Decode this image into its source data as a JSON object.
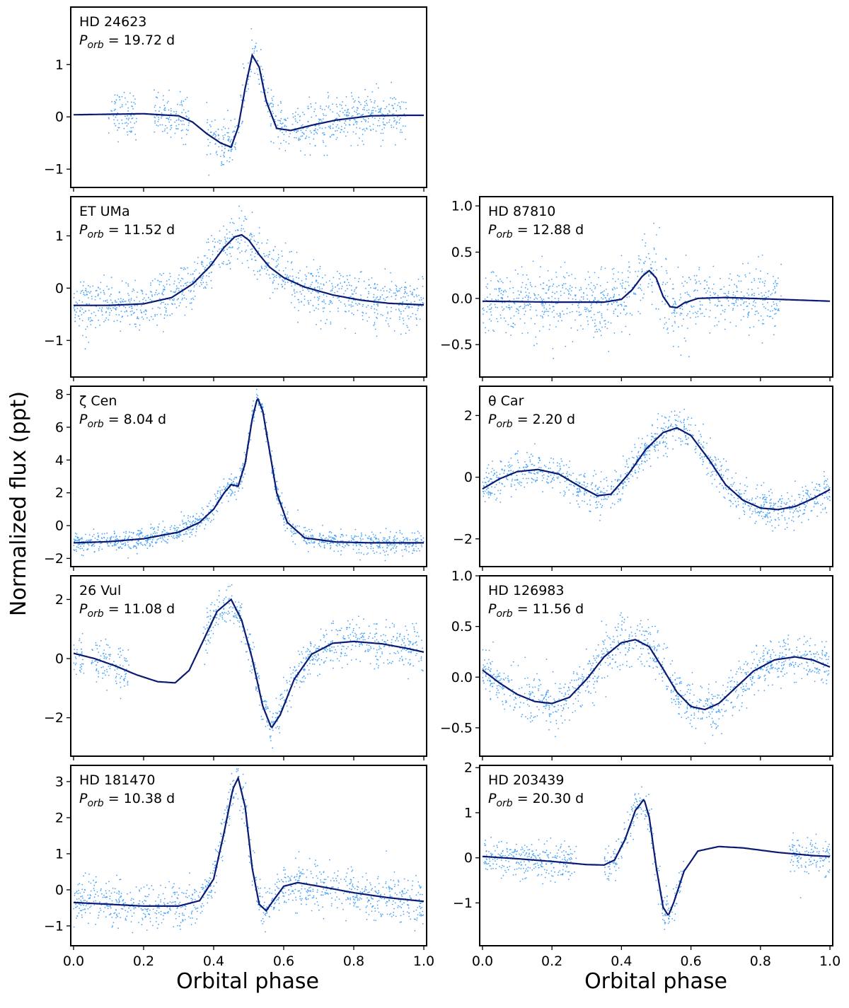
{
  "figure": {
    "ylabel": "Normalized flux (ppt)",
    "xlabel": "Orbital phase",
    "colors": {
      "data": "#4aa3f5",
      "model": "#0a1a72",
      "frame": "#000000"
    }
  },
  "chart_data": [
    {
      "type": "scatter",
      "star": "HD 24623",
      "period": "P_orb = 19.72 d",
      "period_value": 19.72,
      "xlim": [
        0,
        1
      ],
      "ylim": [
        -1.35,
        2.1
      ],
      "xticks": [
        0.0,
        0.2,
        0.4,
        0.6,
        0.8,
        1.0
      ],
      "yticks": [
        -1,
        0,
        1
      ],
      "ytick_labels": [
        "−1",
        "0",
        "1"
      ],
      "xtick_labels": [],
      "model_curve": {
        "x": [
          0.0,
          0.1,
          0.2,
          0.3,
          0.34,
          0.38,
          0.42,
          0.45,
          0.47,
          0.49,
          0.51,
          0.53,
          0.55,
          0.58,
          0.62,
          0.68,
          0.75,
          0.85,
          0.95,
          1.0
        ],
        "y": [
          0.04,
          0.05,
          0.06,
          0.02,
          -0.1,
          -0.32,
          -0.5,
          -0.58,
          -0.2,
          0.55,
          1.18,
          0.95,
          0.3,
          -0.22,
          -0.26,
          -0.16,
          -0.06,
          0.02,
          0.03,
          0.03
        ]
      },
      "data_coverage": [
        [
          0.1,
          0.18
        ],
        [
          0.23,
          0.33
        ],
        [
          0.38,
          0.95
        ]
      ],
      "data_scatter": 0.22
    },
    {
      "type": "scatter",
      "star": "ET UMa",
      "period": "P_orb = 11.52 d",
      "period_value": 11.52,
      "xlim": [
        0,
        1
      ],
      "ylim": [
        -1.7,
        1.75
      ],
      "xticks": [
        0.0,
        0.2,
        0.4,
        0.6,
        0.8,
        1.0
      ],
      "yticks": [
        -1,
        0,
        1
      ],
      "ytick_labels": [
        "−1",
        "0",
        "1"
      ],
      "xtick_labels": [],
      "model_curve": {
        "x": [
          0.0,
          0.1,
          0.2,
          0.28,
          0.34,
          0.39,
          0.43,
          0.46,
          0.48,
          0.5,
          0.53,
          0.56,
          0.6,
          0.66,
          0.74,
          0.82,
          0.9,
          1.0
        ],
        "y": [
          -0.33,
          -0.33,
          -0.3,
          -0.18,
          0.08,
          0.42,
          0.78,
          0.98,
          1.02,
          0.92,
          0.64,
          0.4,
          0.2,
          0.02,
          -0.13,
          -0.23,
          -0.29,
          -0.32
        ]
      },
      "data_coverage": [
        [
          0.0,
          1.0
        ]
      ],
      "data_scatter": 0.25
    },
    {
      "type": "scatter",
      "star": "HD 87810",
      "period": "P_orb = 12.88 d",
      "period_value": 12.88,
      "xlim": [
        0,
        1
      ],
      "ylim": [
        -0.85,
        1.1
      ],
      "xticks": [
        0.0,
        0.2,
        0.4,
        0.6,
        0.8,
        1.0
      ],
      "yticks": [
        -0.5,
        0.0,
        0.5,
        1.0
      ],
      "ytick_labels": [
        "−0.5",
        "0.0",
        "0.5",
        "1.0"
      ],
      "xtick_labels": [],
      "model_curve": {
        "x": [
          0.0,
          0.2,
          0.35,
          0.4,
          0.43,
          0.46,
          0.48,
          0.5,
          0.52,
          0.54,
          0.56,
          0.58,
          0.62,
          0.7,
          0.85,
          1.0
        ],
        "y": [
          -0.03,
          -0.04,
          -0.04,
          -0.01,
          0.09,
          0.24,
          0.3,
          0.22,
          0.02,
          -0.09,
          -0.1,
          -0.05,
          0.0,
          0.01,
          -0.01,
          -0.03
        ]
      },
      "data_coverage": [
        [
          0.0,
          0.86
        ]
      ],
      "data_scatter": 0.18
    },
    {
      "type": "scatter",
      "star": "ζ Cen",
      "period": "P_orb = 8.04 d",
      "period_value": 8.04,
      "xlim": [
        0,
        1
      ],
      "ylim": [
        -2.5,
        8.5
      ],
      "xticks": [
        0.0,
        0.2,
        0.4,
        0.6,
        0.8,
        1.0
      ],
      "yticks": [
        -2,
        0,
        2,
        4,
        6,
        8
      ],
      "ytick_labels": [
        "−2",
        "0",
        "2",
        "4",
        "6",
        "8"
      ],
      "xtick_labels": [],
      "model_curve": {
        "x": [
          0.0,
          0.1,
          0.2,
          0.3,
          0.36,
          0.4,
          0.43,
          0.45,
          0.47,
          0.49,
          0.51,
          0.525,
          0.54,
          0.56,
          0.58,
          0.61,
          0.66,
          0.75,
          0.85,
          1.0
        ],
        "y": [
          -1.05,
          -0.98,
          -0.8,
          -0.4,
          0.2,
          1.0,
          2.0,
          2.5,
          2.4,
          3.8,
          6.5,
          7.8,
          7.0,
          4.5,
          2.0,
          0.2,
          -0.75,
          -1.0,
          -1.05,
          -1.05
        ]
      },
      "data_coverage": [
        [
          0.0,
          1.0
        ]
      ],
      "data_scatter": 0.35
    },
    {
      "type": "scatter",
      "star": "θ Car",
      "period": "P_orb = 2.20 d",
      "period_value": 2.2,
      "xlim": [
        0,
        1
      ],
      "ylim": [
        -2.9,
        2.95
      ],
      "xticks": [
        0.0,
        0.2,
        0.4,
        0.6,
        0.8,
        1.0
      ],
      "yticks": [
        -2,
        0,
        2
      ],
      "ytick_labels": [
        "−2",
        "0",
        "2"
      ],
      "xtick_labels": [],
      "model_curve": {
        "x": [
          0.0,
          0.05,
          0.1,
          0.16,
          0.22,
          0.28,
          0.33,
          0.37,
          0.42,
          0.47,
          0.52,
          0.56,
          0.6,
          0.65,
          0.7,
          0.75,
          0.8,
          0.85,
          0.9,
          0.95,
          1.0
        ],
        "y": [
          -0.38,
          -0.05,
          0.18,
          0.25,
          0.1,
          -0.3,
          -0.6,
          -0.55,
          0.1,
          0.9,
          1.45,
          1.6,
          1.35,
          0.6,
          -0.25,
          -0.75,
          -1.0,
          -1.05,
          -0.95,
          -0.7,
          -0.4
        ]
      },
      "data_coverage": [
        [
          0.0,
          1.0
        ]
      ],
      "data_scatter": 0.3
    },
    {
      "type": "scatter",
      "star": "26 Vul",
      "period": "P_orb = 11.08 d",
      "period_value": 11.08,
      "xlim": [
        0,
        1
      ],
      "ylim": [
        -3.3,
        2.8
      ],
      "xticks": [
        0.0,
        0.2,
        0.4,
        0.6,
        0.8,
        1.0
      ],
      "yticks": [
        -2,
        0,
        2
      ],
      "ytick_labels": [
        "−2",
        "0",
        "2"
      ],
      "xtick_labels": [],
      "model_curve": {
        "x": [
          0.0,
          0.06,
          0.12,
          0.18,
          0.24,
          0.29,
          0.33,
          0.37,
          0.41,
          0.45,
          0.48,
          0.51,
          0.54,
          0.565,
          0.59,
          0.63,
          0.68,
          0.74,
          0.8,
          0.88,
          0.95,
          1.0
        ],
        "y": [
          0.18,
          0.0,
          -0.25,
          -0.55,
          -0.78,
          -0.82,
          -0.4,
          0.6,
          1.6,
          2.0,
          1.3,
          0.0,
          -1.6,
          -2.35,
          -1.9,
          -0.7,
          0.15,
          0.52,
          0.58,
          0.5,
          0.35,
          0.22
        ]
      },
      "data_coverage": [
        [
          0.0,
          0.03
        ],
        [
          0.05,
          0.16
        ],
        [
          0.37,
          1.0
        ]
      ],
      "data_scatter": 0.35
    },
    {
      "type": "scatter",
      "star": "HD 126983",
      "period": "P_orb = 11.56 d",
      "period_value": 11.56,
      "xlim": [
        0,
        1
      ],
      "ylim": [
        -0.78,
        1.0
      ],
      "xticks": [
        0.0,
        0.2,
        0.4,
        0.6,
        0.8,
        1.0
      ],
      "yticks": [
        -0.5,
        0.0,
        0.5,
        1.0
      ],
      "ytick_labels": [
        "−0.5",
        "0.0",
        "0.5",
        "1.0"
      ],
      "xtick_labels": [],
      "model_curve": {
        "x": [
          0.0,
          0.05,
          0.1,
          0.15,
          0.2,
          0.25,
          0.3,
          0.35,
          0.4,
          0.44,
          0.48,
          0.52,
          0.56,
          0.6,
          0.64,
          0.68,
          0.73,
          0.78,
          0.84,
          0.9,
          0.95,
          1.0
        ],
        "y": [
          0.07,
          -0.06,
          -0.17,
          -0.24,
          -0.26,
          -0.2,
          -0.02,
          0.2,
          0.34,
          0.37,
          0.3,
          0.08,
          -0.15,
          -0.29,
          -0.32,
          -0.26,
          -0.1,
          0.06,
          0.17,
          0.2,
          0.17,
          0.1
        ]
      },
      "data_coverage": [
        [
          0.0,
          1.0
        ]
      ],
      "data_scatter": 0.12
    },
    {
      "type": "scatter",
      "star": "HD 181470",
      "period": "P_orb = 10.38 d",
      "period_value": 10.38,
      "xlim": [
        0,
        1
      ],
      "ylim": [
        -1.55,
        3.45
      ],
      "xticks": [
        0.0,
        0.2,
        0.4,
        0.6,
        0.8,
        1.0
      ],
      "yticks": [
        -1,
        0,
        1,
        2,
        3
      ],
      "ytick_labels": [
        "−1",
        "0",
        "1",
        "2",
        "3"
      ],
      "xtick_labels": [
        "0.0",
        "0.2",
        "0.4",
        "0.6",
        "0.8",
        "1.0"
      ],
      "model_curve": {
        "x": [
          0.0,
          0.1,
          0.2,
          0.3,
          0.36,
          0.4,
          0.43,
          0.455,
          0.47,
          0.49,
          0.51,
          0.53,
          0.55,
          0.57,
          0.6,
          0.64,
          0.7,
          0.8,
          0.9,
          1.0
        ],
        "y": [
          -0.35,
          -0.4,
          -0.45,
          -0.45,
          -0.3,
          0.3,
          1.6,
          2.8,
          3.1,
          2.3,
          0.6,
          -0.4,
          -0.58,
          -0.3,
          0.1,
          0.2,
          0.1,
          -0.08,
          -0.22,
          -0.32
        ]
      },
      "data_coverage": [
        [
          0.0,
          1.0
        ]
      ],
      "data_scatter": 0.3
    },
    {
      "type": "scatter",
      "star": "HD 203439",
      "period": "P_orb = 20.30 d",
      "period_value": 20.3,
      "xlim": [
        0,
        1
      ],
      "ylim": [
        -1.95,
        2.05
      ],
      "xticks": [
        0.0,
        0.2,
        0.4,
        0.6,
        0.8,
        1.0
      ],
      "yticks": [
        -1,
        0,
        1,
        2
      ],
      "ytick_labels": [
        "−1",
        "0",
        "1",
        "2"
      ],
      "xtick_labels": [
        "0.0",
        "0.2",
        "0.4",
        "0.6",
        "0.8",
        "1.0"
      ],
      "model_curve": {
        "x": [
          0.0,
          0.1,
          0.2,
          0.3,
          0.35,
          0.38,
          0.41,
          0.44,
          0.465,
          0.48,
          0.5,
          0.52,
          0.535,
          0.55,
          0.58,
          0.62,
          0.68,
          0.75,
          0.85,
          0.95,
          1.0
        ],
        "y": [
          0.03,
          -0.02,
          -0.08,
          -0.15,
          -0.16,
          -0.05,
          0.4,
          1.05,
          1.3,
          0.9,
          -0.2,
          -1.1,
          -1.28,
          -1.0,
          -0.3,
          0.15,
          0.25,
          0.22,
          0.12,
          0.05,
          0.03
        ]
      },
      "data_coverage": [
        [
          0.0,
          0.27
        ],
        [
          0.35,
          0.58
        ],
        [
          0.88,
          1.0
        ]
      ],
      "data_scatter": 0.2
    }
  ]
}
